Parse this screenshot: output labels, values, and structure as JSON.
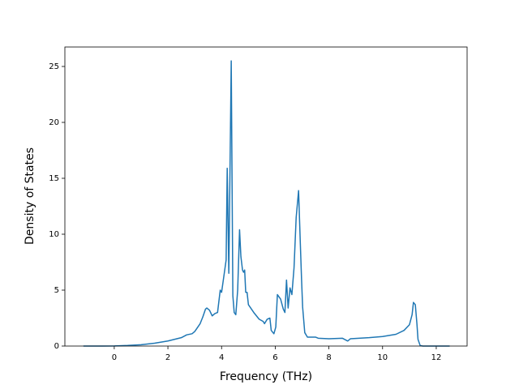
{
  "chart_data": {
    "type": "line",
    "xlabel": "Frequency (THz)",
    "ylabel": "Density of States",
    "color": "#1f77b4",
    "x": [
      -1.15,
      -0.5,
      0,
      0.5,
      1,
      1.5,
      2,
      2.5,
      2.7,
      2.9,
      3.0,
      3.2,
      3.3,
      3.4,
      3.45,
      3.55,
      3.65,
      3.75,
      3.85,
      3.95,
      4.0,
      4.1,
      4.17,
      4.21,
      4.27,
      4.36,
      4.42,
      4.47,
      4.53,
      4.6,
      4.67,
      4.72,
      4.78,
      4.82,
      4.86,
      4.9,
      4.95,
      5.0,
      5.2,
      5.4,
      5.55,
      5.6,
      5.7,
      5.8,
      5.85,
      5.95,
      6.02,
      6.08,
      6.2,
      6.3,
      6.36,
      6.42,
      6.48,
      6.55,
      6.62,
      6.7,
      6.78,
      6.87,
      6.93,
      6.98,
      7.02,
      7.1,
      7.2,
      7.5,
      7.6,
      8,
      8.5,
      8.7,
      8.8,
      9.5,
      10,
      10.5,
      10.8,
      11.0,
      11.1,
      11.15,
      11.22,
      11.28,
      11.32,
      11.4,
      11.5,
      12.5
    ],
    "values": [
      0,
      0,
      0.01,
      0.05,
      0.12,
      0.25,
      0.45,
      0.75,
      1.0,
      1.1,
      1.3,
      2.0,
      2.6,
      3.3,
      3.4,
      3.2,
      2.7,
      2.9,
      3.0,
      5.0,
      4.8,
      6.5,
      7.7,
      15.9,
      6.5,
      25.5,
      4.5,
      3.0,
      2.8,
      5.0,
      10.4,
      8.0,
      6.8,
      6.6,
      6.8,
      4.8,
      4.8,
      3.7,
      3.0,
      2.4,
      2.2,
      2.0,
      2.4,
      2.5,
      1.4,
      1.1,
      1.7,
      4.6,
      4.2,
      3.3,
      3.0,
      5.9,
      3.4,
      5.2,
      4.6,
      7.0,
      11.5,
      13.9,
      9.5,
      6.0,
      3.5,
      1.2,
      0.8,
      0.8,
      0.7,
      0.65,
      0.7,
      0.45,
      0.65,
      0.75,
      0.85,
      1.05,
      1.4,
      1.9,
      2.8,
      3.9,
      3.7,
      2.0,
      0.6,
      0.05,
      0,
      0
    ],
    "xlim": [
      -1.84,
      13.15
    ],
    "ylim": [
      0,
      26.74
    ],
    "xticks": [
      0,
      2,
      4,
      6,
      8,
      10,
      12
    ],
    "yticks": [
      0,
      5,
      10,
      15,
      20,
      25
    ]
  }
}
